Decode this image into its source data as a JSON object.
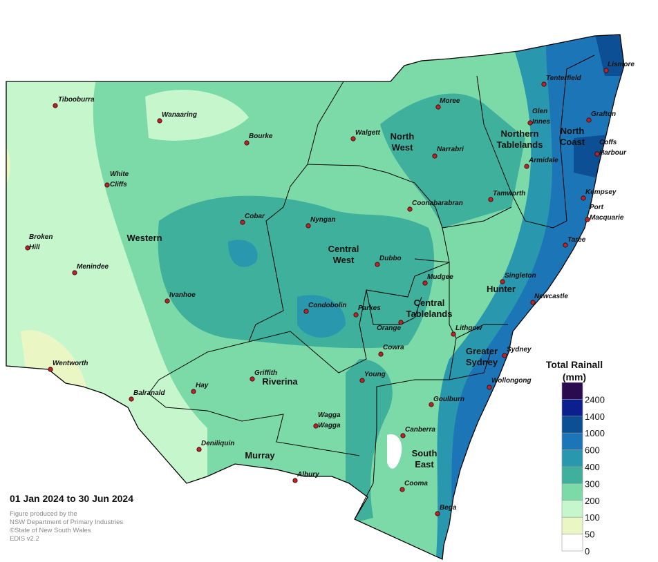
{
  "title": "01 Jan 2024 to 30 Jun 2024",
  "credits": [
    "Figure produced by the",
    "NSW Department of Primary Industries",
    "©State of New South Wales",
    "EDIS v2.2"
  ],
  "legend": {
    "title": [
      "Total Rainall",
      "(mm)"
    ],
    "items": [
      {
        "value": 2400,
        "color": "#2b0b4f"
      },
      {
        "value": 1400,
        "color": "#0c1f8f"
      },
      {
        "value": 1000,
        "color": "#0d4f94"
      },
      {
        "value": 600,
        "color": "#1b75b7"
      },
      {
        "value": 400,
        "color": "#2997ad"
      },
      {
        "value": 300,
        "color": "#3fb09b"
      },
      {
        "value": 200,
        "color": "#7cdaa9"
      },
      {
        "value": 100,
        "color": "#c6f6cc"
      },
      {
        "value": 50,
        "color": "#eaf7c4"
      },
      {
        "value": 0,
        "color": "#ffffff"
      }
    ]
  },
  "regions": [
    {
      "name": [
        "Western"
      ]
    },
    {
      "name": [
        "Central",
        "West"
      ]
    },
    {
      "name": [
        "North",
        "West"
      ]
    },
    {
      "name": [
        "Northern",
        "Tablelands"
      ]
    },
    {
      "name": [
        "North",
        "Coast"
      ]
    },
    {
      "name": [
        "Hunter"
      ]
    },
    {
      "name": [
        "Central",
        "Tablelands"
      ]
    },
    {
      "name": [
        "Greater",
        "Sydney"
      ]
    },
    {
      "name": [
        "Riverina"
      ]
    },
    {
      "name": [
        "Murray"
      ]
    },
    {
      "name": [
        "South",
        "East"
      ]
    }
  ],
  "towns": [
    {
      "name": [
        "Tibooburra"
      ]
    },
    {
      "name": [
        "Wanaaring"
      ]
    },
    {
      "name": [
        "Bourke"
      ]
    },
    {
      "name": [
        "Walgett"
      ]
    },
    {
      "name": [
        "Moree"
      ]
    },
    {
      "name": [
        "Narrabri"
      ]
    },
    {
      "name": [
        "Tenterfield"
      ]
    },
    {
      "name": [
        "Lismore"
      ]
    },
    {
      "name": [
        "Glen",
        "Innes"
      ]
    },
    {
      "name": [
        "Grafton"
      ]
    },
    {
      "name": [
        "Coffs",
        "Harbour"
      ]
    },
    {
      "name": [
        "Armidale"
      ]
    },
    {
      "name": [
        "Tamworth"
      ]
    },
    {
      "name": [
        "Kempsey"
      ]
    },
    {
      "name": [
        "Port",
        "Macquarie"
      ]
    },
    {
      "name": [
        "Taree"
      ]
    },
    {
      "name": [
        "Coonabarabran"
      ]
    },
    {
      "name": [
        "Nyngan"
      ]
    },
    {
      "name": [
        "Cobar"
      ]
    },
    {
      "name": [
        "White",
        "Cliffs"
      ]
    },
    {
      "name": [
        "Broken",
        "Hill"
      ]
    },
    {
      "name": [
        "Menindee"
      ]
    },
    {
      "name": [
        "Ivanhoe"
      ]
    },
    {
      "name": [
        "Dubbo"
      ]
    },
    {
      "name": [
        "Mudgee"
      ]
    },
    {
      "name": [
        "Singleton"
      ]
    },
    {
      "name": [
        "Newcastle"
      ]
    },
    {
      "name": [
        "Condobolin"
      ]
    },
    {
      "name": [
        "Parkes"
      ]
    },
    {
      "name": [
        "Orange"
      ]
    },
    {
      "name": [
        "Lithgow"
      ]
    },
    {
      "name": [
        "Cowra"
      ]
    },
    {
      "name": [
        "Sydney"
      ]
    },
    {
      "name": [
        "Wentworth"
      ]
    },
    {
      "name": [
        "Hay"
      ]
    },
    {
      "name": [
        "Griffith"
      ]
    },
    {
      "name": [
        "Young"
      ]
    },
    {
      "name": [
        "Wollongong"
      ]
    },
    {
      "name": [
        "Balranald"
      ]
    },
    {
      "name": [
        "Goulburn"
      ]
    },
    {
      "name": [
        "Wagga",
        "Wagga"
      ]
    },
    {
      "name": [
        "Canberra"
      ]
    },
    {
      "name": [
        "Deniliquin"
      ]
    },
    {
      "name": [
        "Albury"
      ]
    },
    {
      "name": [
        "Cooma"
      ]
    },
    {
      "name": [
        "Bega"
      ]
    }
  ]
}
